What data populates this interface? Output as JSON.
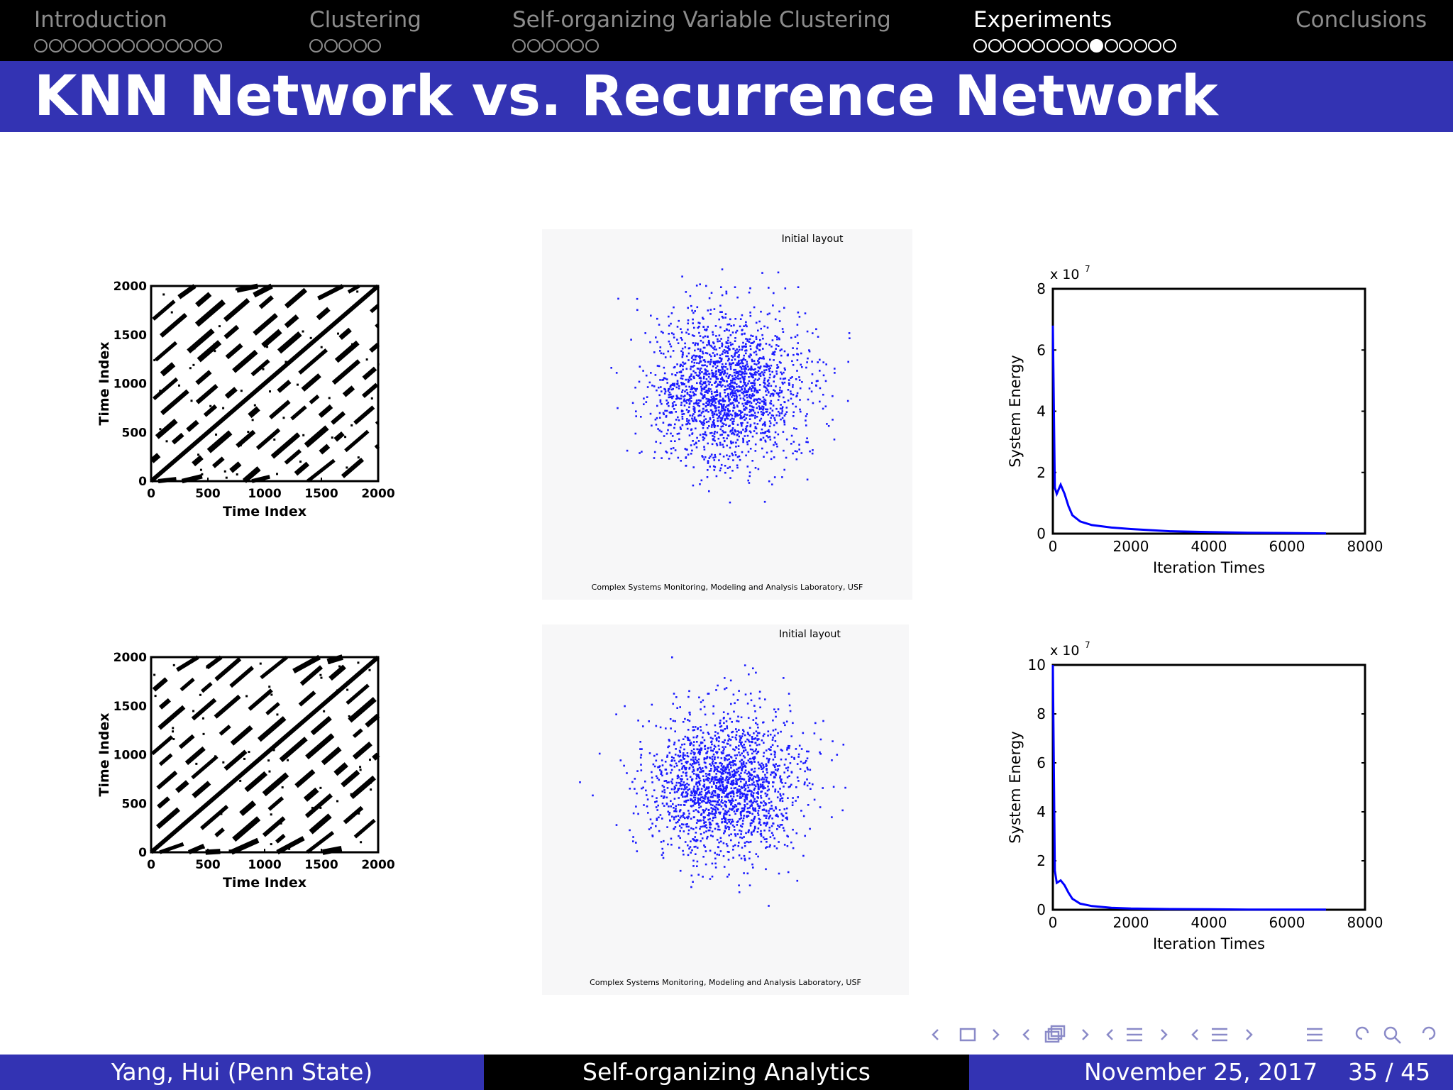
{
  "nav": {
    "sections": [
      {
        "label": "Introduction",
        "dots": 13,
        "current": -1,
        "active": false
      },
      {
        "label": "Clustering",
        "dots": 5,
        "current": -1,
        "active": false
      },
      {
        "label": "Self-organizing Variable Clustering",
        "dots": 6,
        "current": -1,
        "active": false
      },
      {
        "label": "Experiments",
        "dots": 14,
        "current": 8,
        "active": true
      },
      {
        "label": "Conclusions",
        "dots": 0,
        "current": -1,
        "active": false
      }
    ]
  },
  "slide": {
    "title": "KNN Network vs. Recurrence Network"
  },
  "figures": {
    "recurrence_plot": {
      "xlabel": "Time Index",
      "ylabel": "Time Index",
      "ticks": [
        "0",
        "500",
        "1000",
        "1500",
        "2000"
      ]
    },
    "layout_plot": {
      "title": "Initial layout",
      "credit": "Complex Systems Monitoring, Modeling and Analysis Laboratory, USF",
      "point_color": "#1a1aff"
    },
    "energy_plot": {
      "xlabel": "Iteration Times",
      "ylabel": "System Energy",
      "multiplier": "x 10",
      "exponent": "7",
      "line_color": "#0000ff"
    }
  },
  "chart_data": [
    {
      "type": "scatter",
      "title": "",
      "xlabel": "Time Index",
      "ylabel": "Time Index",
      "xlim": [
        0,
        2000
      ],
      "ylim": [
        0,
        2000
      ],
      "x_ticks": [
        0,
        500,
        1000,
        1500,
        2000
      ],
      "y_ticks": [
        0,
        500,
        1000,
        1500,
        2000
      ]
    },
    {
      "type": "scatter",
      "title": "Initial layout",
      "n_points_approx": 2000,
      "distribution": "gaussian cloud"
    },
    {
      "type": "line",
      "xlabel": "Iteration Times",
      "ylabel": "System Energy",
      "y_scale_note": "x 10^7",
      "xlim": [
        0,
        8000
      ],
      "ylim": [
        0,
        8
      ],
      "x_ticks": [
        0,
        2000,
        4000,
        6000,
        8000
      ],
      "y_ticks": [
        0,
        2,
        4,
        6,
        8
      ],
      "series": [
        {
          "x": [
            0,
            50,
            100,
            200,
            300,
            400,
            500,
            700,
            1000,
            1500,
            2000,
            3000,
            4000,
            5000,
            6000,
            7000
          ],
          "y": [
            6.8,
            1.5,
            1.3,
            1.6,
            1.3,
            0.9,
            0.6,
            0.4,
            0.28,
            0.2,
            0.15,
            0.08,
            0.05,
            0.03,
            0.02,
            0.01
          ]
        }
      ]
    },
    {
      "type": "scatter",
      "title": "Initial layout",
      "n_points_approx": 2000,
      "distribution": "gaussian cloud"
    },
    {
      "type": "line",
      "xlabel": "Iteration Times",
      "ylabel": "System Energy",
      "y_scale_note": "x 10^7",
      "xlim": [
        0,
        8000
      ],
      "ylim": [
        0,
        10
      ],
      "x_ticks": [
        0,
        2000,
        4000,
        6000,
        8000
      ],
      "y_ticks": [
        0,
        2,
        4,
        6,
        8,
        10
      ],
      "series": [
        {
          "x": [
            0,
            50,
            100,
            200,
            300,
            400,
            500,
            700,
            1000,
            1500,
            2000,
            3000,
            4000,
            5000,
            6000,
            7000
          ],
          "y": [
            10,
            1.6,
            1.1,
            1.2,
            1.0,
            0.7,
            0.45,
            0.25,
            0.15,
            0.08,
            0.05,
            0.03,
            0.02,
            0.01,
            0.01,
            0.01
          ]
        }
      ]
    }
  ],
  "footer": {
    "author": "Yang, Hui  (Penn State)",
    "title": "Self-organizing Analytics",
    "date": "November 25, 2017",
    "pages": "35 / 45"
  }
}
